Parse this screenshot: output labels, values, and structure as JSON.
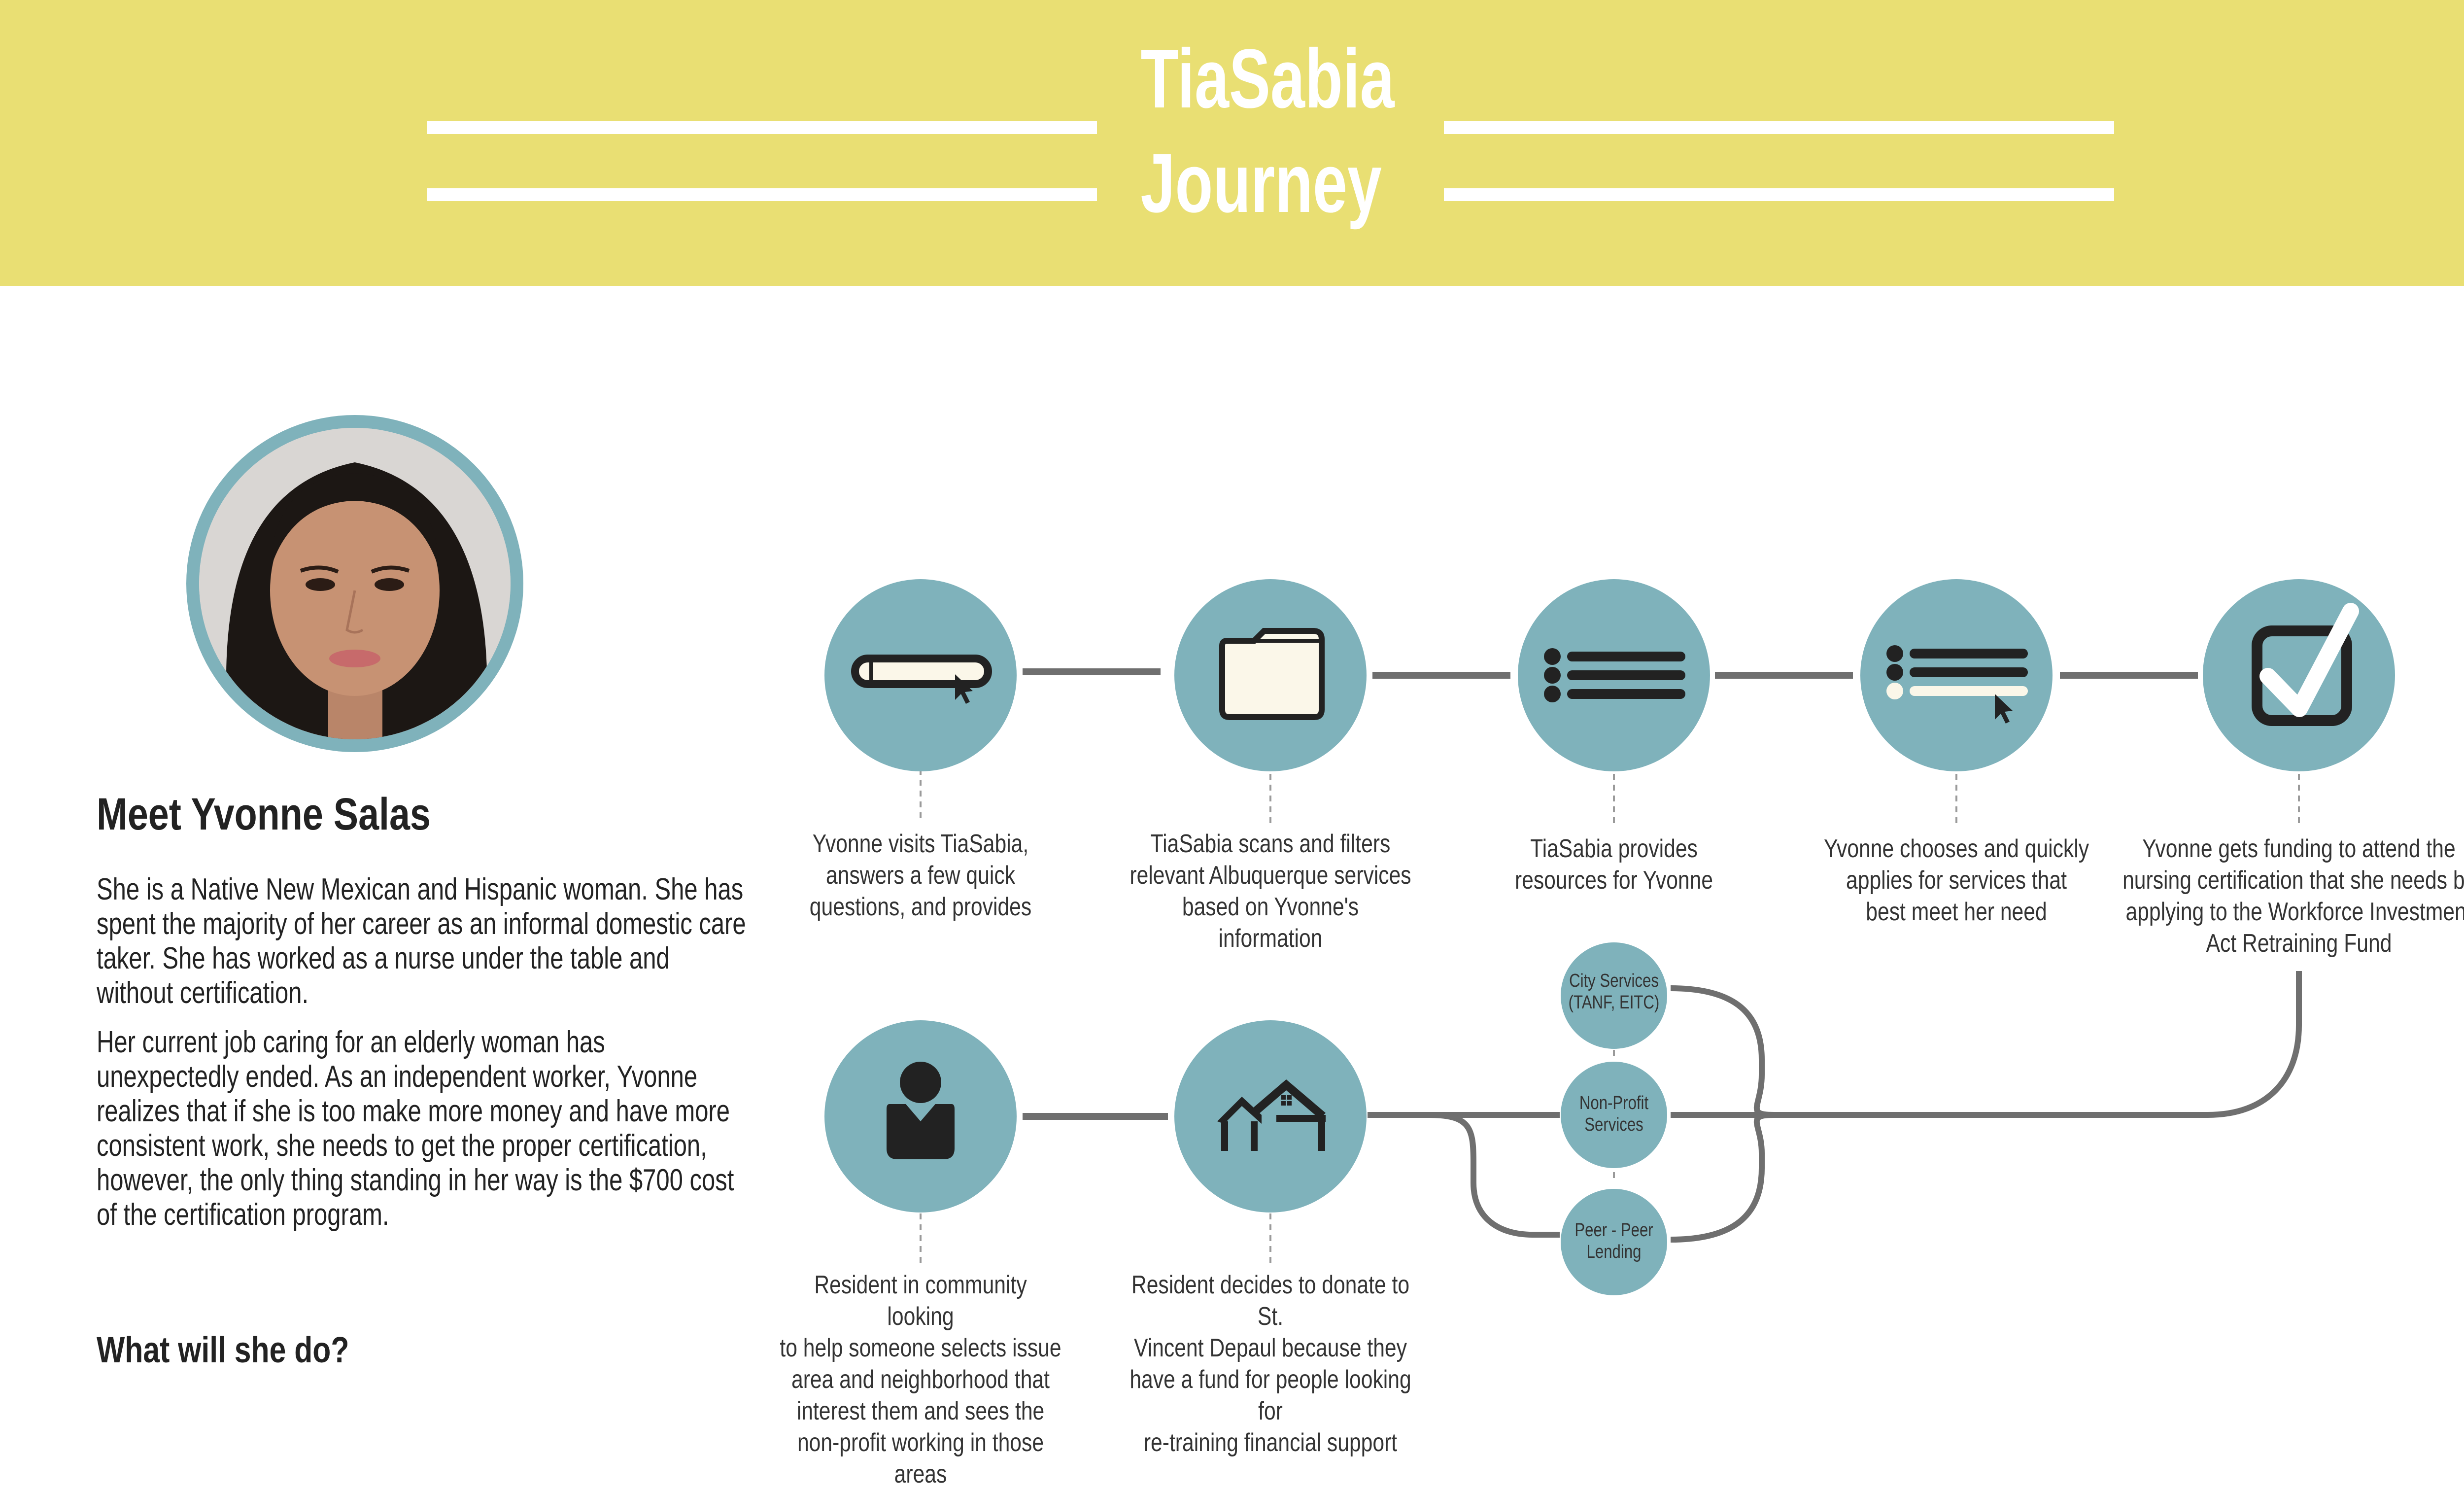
{
  "header": {
    "title_line1": "TiaSabia",
    "title_line2": "Journey"
  },
  "persona": {
    "heading": "Meet Yvonne Salas",
    "bio_paragraph_1": "She is a Native New Mexican and Hispanic woman. She has spent the majority of her career as an informal domestic care taker. She has worked as a nurse under the table and without certification.",
    "bio_paragraph_2": "Her current job caring for an elderly woman has unexpectedly ended. As an independent worker, Yvonne realizes that if she is too make more money and have more consistent work, she needs to get the proper certification, however, the only thing standing in her way is the $700 cost of the certification program.",
    "question": "What will she do?"
  },
  "journey_steps": [
    {
      "icon": "search-bar-icon",
      "caption": [
        "Yvonne visits TiaSabia,",
        "answers a few quick",
        "questions, and provides"
      ]
    },
    {
      "icon": "folder-icon",
      "caption": [
        "TiaSabia scans and filters",
        "relevant Albuquerque services",
        "based on Yvonne's information"
      ]
    },
    {
      "icon": "list-icon",
      "caption": [
        "TiaSabia provides",
        "resources for Yvonne"
      ]
    },
    {
      "icon": "list-select-icon",
      "caption": [
        "Yvonne chooses and quickly",
        "applies for services that",
        "best meet her need"
      ]
    },
    {
      "icon": "checkbox-icon",
      "caption": [
        "Yvonne gets funding to attend the",
        "nursing certification that she needs by",
        "applying to the Workforce Investment",
        "Act Retraining Fund"
      ]
    }
  ],
  "donor_steps": [
    {
      "icon": "person-icon",
      "caption": [
        "Resident in community looking",
        "to help someone selects issue",
        "area and neighborhood that",
        "interest them and sees the",
        "non-profit working in those",
        "areas"
      ]
    },
    {
      "icon": "houses-icon",
      "caption": [
        "Resident decides to donate to St.",
        "Vincent Depaul because they",
        "have a fund for people looking for",
        "re-training financial support"
      ]
    }
  ],
  "funding_sources": [
    {
      "label": [
        "City Services",
        "(TANF, EITC)"
      ]
    },
    {
      "label": [
        "Non-Profit",
        "Services"
      ]
    },
    {
      "label": [
        "Peer - Peer",
        "Lending"
      ]
    }
  ],
  "colors": {
    "header_bg": "#e9df73",
    "circle": "#7fb2bb",
    "connector": "#6f6f6f",
    "icon_dark": "#222222",
    "icon_light": "#fbf7e9"
  }
}
